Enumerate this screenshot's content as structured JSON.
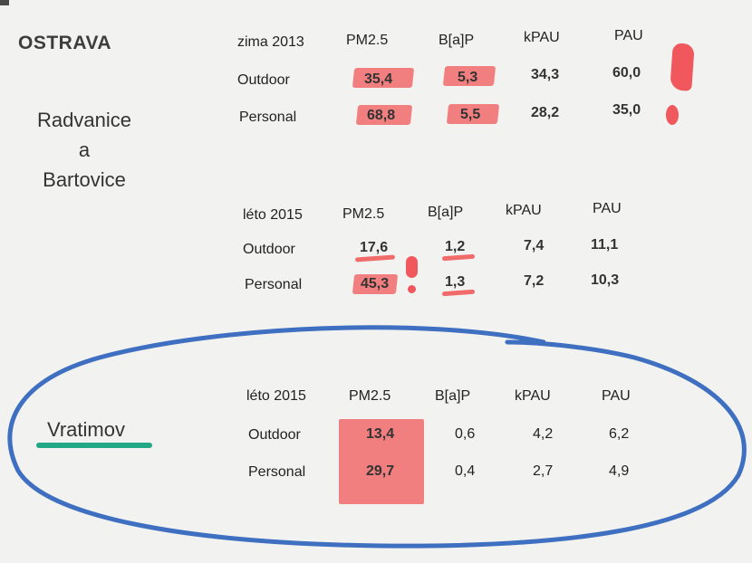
{
  "city": "OSTRAVA",
  "location1": {
    "line1": "Radvanice",
    "line2": "a",
    "line3": "Bartovice"
  },
  "location2": "Vratimov",
  "columns": [
    "PM2.5",
    "B[a]P",
    "kPAU",
    "PAU"
  ],
  "row_labels": [
    "Outdoor",
    "Personal"
  ],
  "tables": [
    {
      "period": "zima 2013",
      "outdoor": [
        "35,4",
        "5,3",
        "34,3",
        "60,0"
      ],
      "personal": [
        "68,8",
        "5,5",
        "28,2",
        "35,0"
      ]
    },
    {
      "period": "léto 2015",
      "outdoor": [
        "17,6",
        "1,2",
        "7,4",
        "11,1"
      ],
      "personal": [
        "45,3",
        "1,3",
        "7,2",
        "10,3"
      ]
    },
    {
      "period": "léto 2015",
      "outdoor": [
        "13,4",
        "0,6",
        "4,2",
        "6,2"
      ],
      "personal": [
        "29,7",
        "0,4",
        "2,7",
        "4,9"
      ]
    }
  ],
  "colors": {
    "highlight": "#f26b6b",
    "circle": "#3f6fc0",
    "underline": "#23a887"
  }
}
